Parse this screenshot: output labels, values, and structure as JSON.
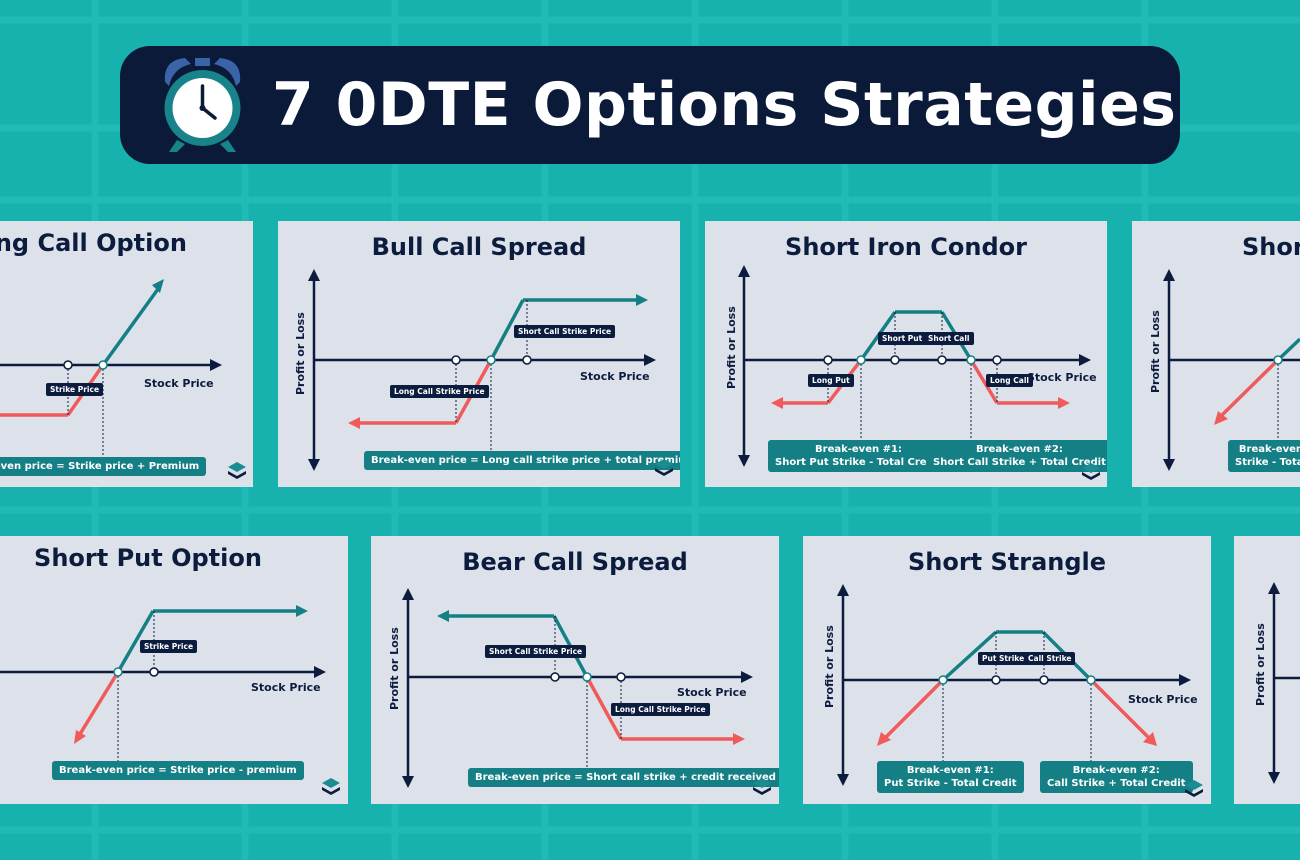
{
  "header": {
    "title": "7 0DTE Options Strategies",
    "icon": "alarm-clock-icon"
  },
  "colors": {
    "background": "#17b2ae",
    "title_bar": "#0a1a38",
    "card": "#dde2ea",
    "navy": "#0c1c3e",
    "teal": "#157f86",
    "red": "#f05a5b"
  },
  "cards": {
    "long_call": {
      "title": "Long Call Option",
      "x_axis": "Stock Price",
      "tags": {
        "strike": "Strike Price"
      },
      "formula": "Break-even price = Strike price + Premium"
    },
    "bull_call": {
      "title": "Bull Call Spread",
      "x_axis": "Stock Price",
      "y_axis": "Profit or Loss",
      "tags": {
        "short_call": "Short Call Strike Price",
        "long_call": "Long Call Strike Price"
      },
      "formula": "Break-even price = Long call strike price + total premium"
    },
    "iron_condor": {
      "title": "Short Iron Condor",
      "x_axis": "Stock Price",
      "y_axis": "Profit or Loss",
      "tags": {
        "long_put": "Long Put",
        "short_put": "Short Put",
        "short_call": "Short Call",
        "long_call": "Long Call"
      },
      "formula1": {
        "line1": "Break-even #1:",
        "line2": "Short Put Strike - Total Credit"
      },
      "formula2": {
        "line1": "Break-even #2:",
        "line2": "Short Call Strike + Total Credit"
      }
    },
    "short_partial": {
      "title": "Short",
      "y_axis": "Profit or Loss",
      "formula": {
        "line1": "Break-even",
        "line2": "Strike - Total"
      }
    },
    "short_put": {
      "title": "Short Put Option",
      "x_axis": "Stock Price",
      "tags": {
        "strike": "Strike Price"
      },
      "formula": "Break-even price = Strike price - premium"
    },
    "bear_call": {
      "title": "Bear Call Spread",
      "x_axis": "Stock Price",
      "y_axis": "Profit or Loss",
      "tags": {
        "short_call": "Short Call Strike Price",
        "long_call": "Long Call Strike Price"
      },
      "formula": "Break-even price = Short call strike + credit received"
    },
    "short_strangle": {
      "title": "Short Strangle",
      "x_axis": "Stock Price",
      "y_axis": "Profit or Loss",
      "tags": {
        "put_strike": "Put Strike",
        "call_strike": "Call Strike"
      },
      "formula1": {
        "line1": "Break-even #1:",
        "line2": "Put Strike - Total Credit"
      },
      "formula2": {
        "line1": "Break-even #2:",
        "line2": "Call Strike + Total Credit"
      }
    },
    "last_partial": {
      "y_axis": "Profit or Loss"
    }
  }
}
